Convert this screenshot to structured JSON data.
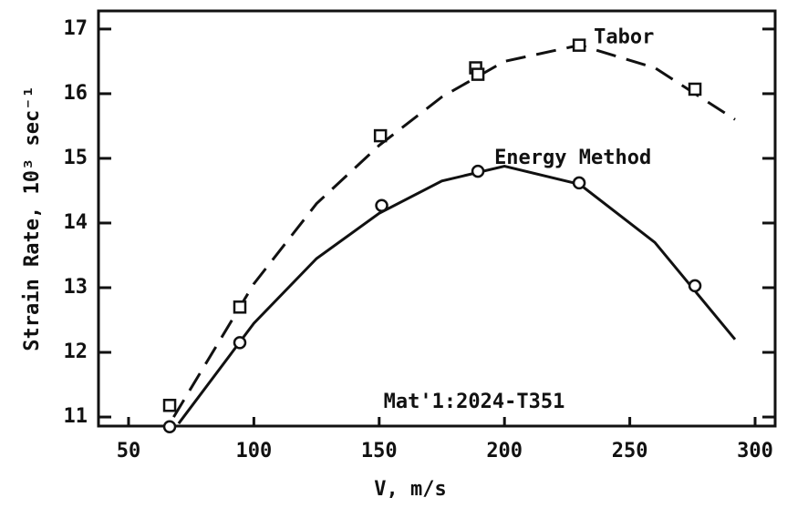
{
  "chart_data": {
    "type": "line",
    "xlabel": "V, m/s",
    "ylabel": "Strain Rate, 10³ sec⁻¹",
    "annotation": "Mat'1:2024-T351",
    "xlim": [
      38,
      308
    ],
    "xticks": [
      50,
      100,
      150,
      200,
      250,
      300
    ],
    "ylim": [
      10.86,
      17.28
    ],
    "yticks": [
      11,
      12,
      13,
      14,
      15,
      16,
      17
    ],
    "series": [
      {
        "name": "Tabor",
        "color": "#111111",
        "marker": "square",
        "dash": true,
        "x": [
          66.4,
          94.4,
          150.5,
          188.5,
          189.4,
          229.8,
          276
        ],
        "values": [
          11.18,
          12.7,
          15.35,
          16.4,
          16.3,
          16.75,
          16.07
        ],
        "fit_x": [
          68,
          100,
          125,
          150,
          175,
          200,
          230,
          260,
          292
        ],
        "fit": [
          11.0,
          13.06,
          14.3,
          15.2,
          15.95,
          16.5,
          16.75,
          16.4,
          15.6
        ]
      },
      {
        "name": "Energy Method",
        "color": "#111111",
        "marker": "circle",
        "dash": false,
        "x": [
          66.4,
          94.4,
          151,
          189.4,
          229.8,
          276
        ],
        "values": [
          10.85,
          12.15,
          14.27,
          14.8,
          14.62,
          13.03
        ],
        "fit_x": [
          70,
          100,
          125,
          150,
          175,
          200,
          230,
          260,
          292
        ],
        "fit": [
          10.9,
          12.45,
          13.45,
          14.15,
          14.65,
          14.88,
          14.6,
          13.7,
          12.2
        ]
      }
    ]
  }
}
